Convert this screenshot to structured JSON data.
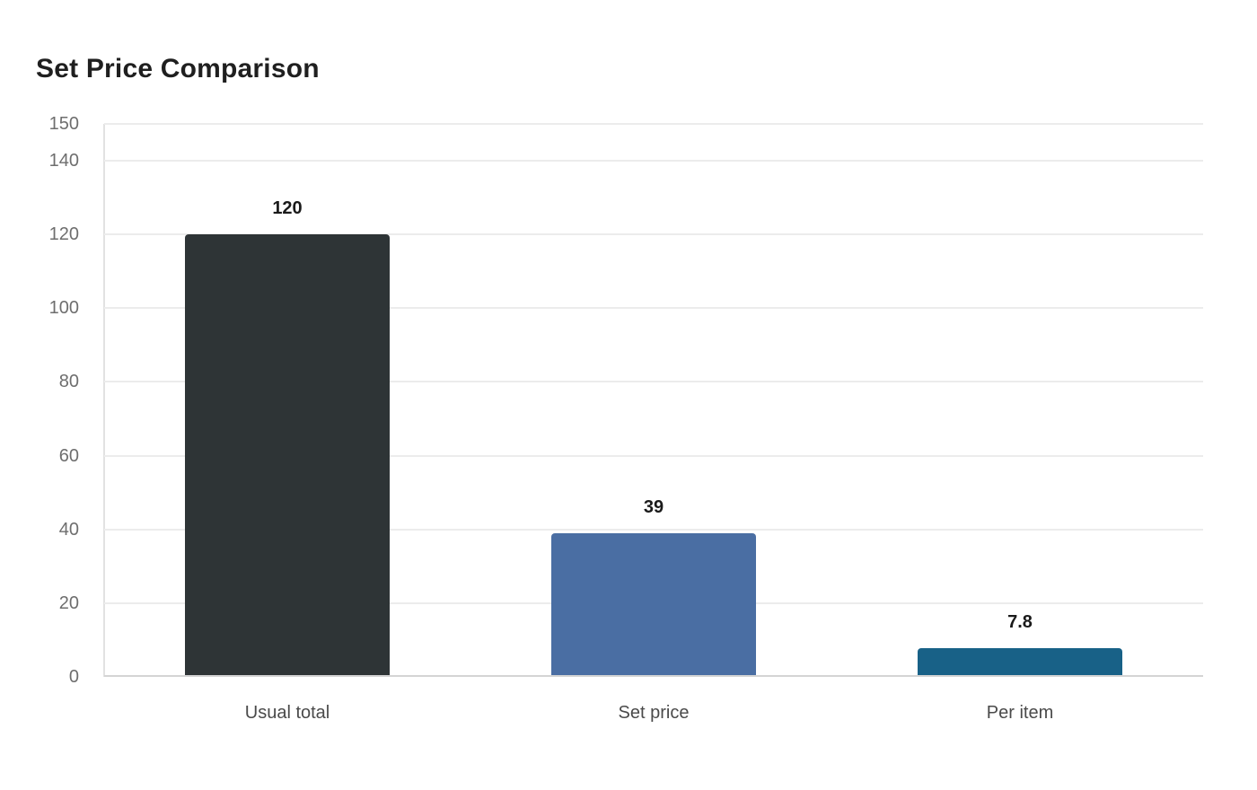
{
  "chart_data": {
    "type": "bar",
    "title": "Set Price Comparison",
    "xlabel": "",
    "ylabel": "",
    "categories": [
      "Usual total",
      "Set price",
      "Per item"
    ],
    "values": [
      120,
      39,
      7.8
    ],
    "data_labels": [
      "120",
      "39",
      "7.8"
    ],
    "colors": [
      "#2e3436",
      "#4a6ea3",
      "#186187"
    ],
    "ylim": [
      0,
      150
    ],
    "yticks": [
      0,
      20,
      40,
      60,
      80,
      100,
      120,
      140,
      150
    ],
    "grid": true,
    "legend": null
  },
  "header": {
    "title": "Set Price Comparison"
  }
}
